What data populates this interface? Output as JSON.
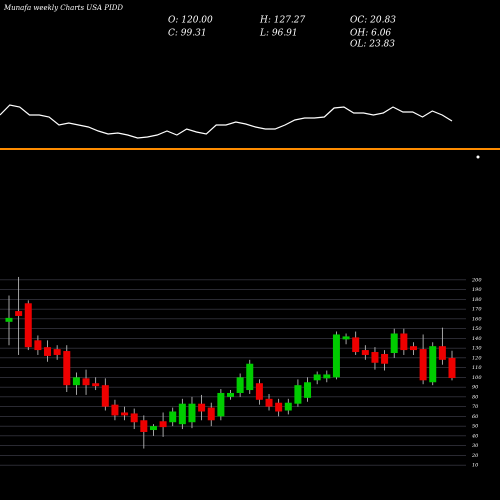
{
  "chart_data": {
    "type": "candlestick",
    "title": "Munafa weekly Charts USA PIDD",
    "info": [
      "O: 120.00",
      "H: 127.27",
      "OC: 20.83",
      "C: 99.31",
      "L: 96.91",
      "OH: 6.06",
      "OL: 23.83"
    ],
    "up_color": "#00cc00",
    "down_color": "#ee0000",
    "open": [
      157,
      168,
      176,
      138,
      131,
      129,
      127,
      92,
      99,
      94,
      92,
      72,
      64,
      63,
      56,
      46,
      55,
      54,
      52,
      54,
      73,
      69,
      60,
      80,
      84,
      87,
      94,
      78,
      74,
      66,
      73,
      79,
      97,
      99,
      100,
      139,
      141,
      128,
      126,
      124,
      125,
      145,
      132,
      129,
      95,
      132,
      120
    ],
    "high": [
      184,
      203,
      179,
      143,
      138,
      133,
      133,
      105,
      108,
      100,
      99,
      77,
      70,
      68,
      61,
      52,
      64,
      69,
      78,
      80,
      82,
      74,
      88,
      87,
      104,
      118,
      98,
      83,
      78,
      78,
      98,
      100,
      106,
      107,
      147,
      145,
      147,
      133,
      131,
      128,
      150,
      150,
      136,
      144,
      136,
      151,
      127.27
    ],
    "low": [
      133,
      123,
      128,
      123,
      116,
      118,
      85,
      82,
      82,
      87,
      66,
      56,
      56,
      47,
      27,
      40,
      39,
      50,
      47,
      48,
      56,
      50,
      56,
      77,
      80,
      83,
      72,
      66,
      60,
      62,
      70,
      75,
      93,
      95,
      98,
      134,
      123,
      118,
      108,
      107,
      120,
      123,
      123,
      93,
      92,
      113,
      96.91
    ],
    "close": [
      161,
      163,
      131,
      128,
      122,
      123,
      92,
      100,
      92,
      91,
      70,
      61,
      61,
      54,
      44,
      50,
      49,
      65,
      73,
      73,
      65,
      56,
      84,
      84,
      100,
      114,
      77,
      70,
      65,
      74,
      92,
      95,
      103,
      103,
      144,
      142,
      126,
      123,
      115,
      114,
      145,
      128,
      128,
      97,
      132,
      118,
      99.31
    ],
    "indicator": [
      30,
      40,
      38,
      30,
      30,
      28,
      20,
      22,
      20,
      18,
      14,
      11,
      12,
      10,
      7,
      8,
      10,
      14,
      10,
      16,
      13,
      11,
      20,
      20,
      23,
      21,
      18,
      16,
      16,
      20,
      25,
      27,
      27,
      28,
      37,
      38,
      32,
      32,
      30,
      32,
      38,
      33,
      33,
      28,
      34,
      30,
      24
    ],
    "indicator_ylim": [
      0,
      50
    ],
    "ylim": [
      5,
      205
    ],
    "yticks": [
      10,
      20,
      30,
      40,
      50,
      60,
      70,
      80,
      90,
      100,
      110,
      120,
      130,
      140,
      150,
      160,
      170,
      180,
      190,
      200
    ],
    "grid": true
  }
}
